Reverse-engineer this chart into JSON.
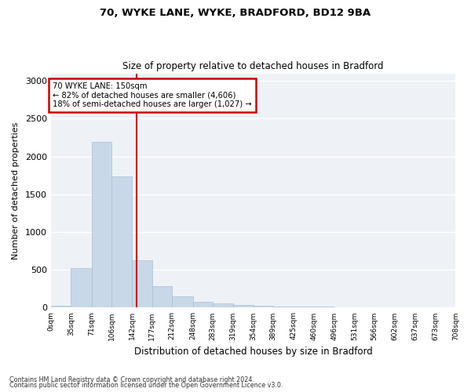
{
  "title_line1": "70, WYKE LANE, WYKE, BRADFORD, BD12 9BA",
  "title_line2": "Size of property relative to detached houses in Bradford",
  "xlabel": "Distribution of detached houses by size in Bradford",
  "ylabel": "Number of detached properties",
  "bar_color": "#c8d8e8",
  "bar_edge_color": "#a8bfd0",
  "background_color": "#eef2f7",
  "grid_color": "#ffffff",
  "annotation_text_line1": "70 WYKE LANE: 150sqm",
  "annotation_text_line2": "← 82% of detached houses are smaller (4,606)",
  "annotation_text_line3": "18% of semi-detached houses are larger (1,027) →",
  "annotation_box_color": "#ffffff",
  "annotation_box_edge": "#cc0000",
  "vline_color": "#cc0000",
  "vline_x": 150,
  "footer_line1": "Contains HM Land Registry data © Crown copyright and database right 2024.",
  "footer_line2": "Contains public sector information licensed under the Open Government Licence v3.0.",
  "bin_edges": [
    0,
    35,
    71,
    106,
    142,
    177,
    212,
    248,
    283,
    319,
    354,
    389,
    425,
    460,
    496,
    531,
    566,
    602,
    637,
    673,
    708
  ],
  "bin_labels": [
    "0sqm",
    "35sqm",
    "71sqm",
    "106sqm",
    "142sqm",
    "177sqm",
    "212sqm",
    "248sqm",
    "283sqm",
    "319sqm",
    "354sqm",
    "389sqm",
    "425sqm",
    "460sqm",
    "496sqm",
    "531sqm",
    "566sqm",
    "602sqm",
    "637sqm",
    "673sqm",
    "708sqm"
  ],
  "bar_heights": [
    25,
    520,
    2190,
    1740,
    630,
    280,
    145,
    80,
    55,
    40,
    25,
    15,
    10,
    20,
    5,
    5,
    5,
    5,
    5,
    5
  ],
  "ylim": [
    0,
    3100
  ],
  "yticks": [
    0,
    500,
    1000,
    1500,
    2000,
    2500,
    3000
  ]
}
